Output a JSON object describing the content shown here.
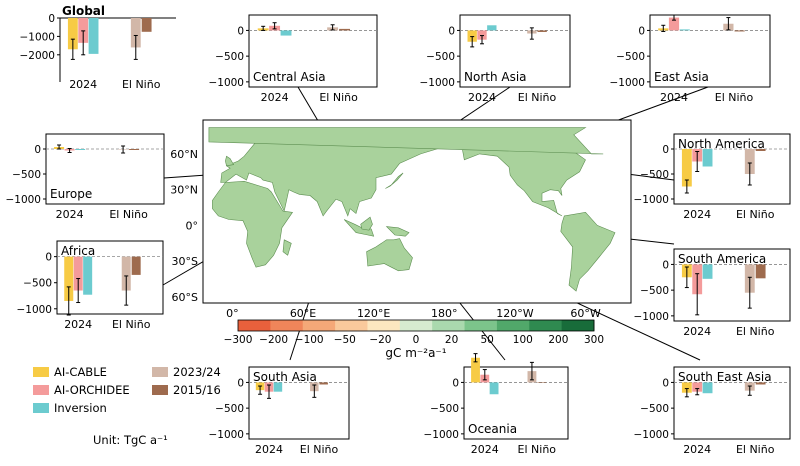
{
  "legend": {
    "items": [
      {
        "label": "AI-CABLE",
        "color": "#f7cb45"
      },
      {
        "label": "AI-ORCHIDEE",
        "color": "#f49b9b"
      },
      {
        "label": "Inversion",
        "color": "#6ccbcf"
      },
      {
        "label": "2023/24",
        "color": "#d2b7a8"
      },
      {
        "label": "2015/16",
        "color": "#9e6b4e"
      }
    ],
    "unit": "Unit: TgC a⁻¹"
  },
  "colorbar": {
    "ticks": [
      "-300",
      "-200",
      "-100",
      "-50",
      "-20",
      "0",
      "20",
      "50",
      "100",
      "200",
      "300"
    ],
    "colors": [
      "#e8603c",
      "#f0855a",
      "#f5a878",
      "#f9c99c",
      "#fce7c0",
      "#d6ecd0",
      "#aad9ae",
      "#7cc48b",
      "#51a86a",
      "#2f8a50",
      "#186c3a"
    ],
    "label": "gC m⁻²a⁻¹"
  },
  "map": {
    "lat_ticks": [
      "60°N",
      "30°N",
      "0°",
      "30°S",
      "60°S"
    ],
    "lon_ticks": [
      "0°",
      "60°E",
      "120°E",
      "180°",
      "120°W",
      "60°W"
    ]
  },
  "chart_data": [
    {
      "type": "bar",
      "title": "Global",
      "categories": [
        "2024",
        "El Niño"
      ],
      "ylim": [
        -2500,
        0
      ],
      "yticks": [
        0,
        -1000,
        -2000
      ],
      "series": [
        {
          "name": "AI-CABLE",
          "values": [
            -1700,
            null
          ],
          "err": [
            550,
            null
          ]
        },
        {
          "name": "AI-ORCHIDEE",
          "values": [
            -1350,
            null
          ],
          "err": [
            650,
            null
          ]
        },
        {
          "name": "Inversion",
          "values": [
            -1950,
            null
          ],
          "err": [
            null,
            null
          ]
        },
        {
          "name": "2023/24",
          "values": [
            null,
            -1600
          ],
          "err": [
            null,
            650
          ]
        },
        {
          "name": "2015/16",
          "values": [
            null,
            -750
          ],
          "err": [
            null,
            null
          ]
        }
      ]
    },
    {
      "type": "bar",
      "title": "Central Asia",
      "categories": [
        "2024",
        "El Niño"
      ],
      "ylim": [
        -1100,
        300
      ],
      "yticks": [
        0,
        -500,
        -1000
      ],
      "series": [
        {
          "name": "AI-CABLE",
          "values": [
            40,
            null
          ],
          "err": [
            40,
            null
          ]
        },
        {
          "name": "AI-ORCHIDEE",
          "values": [
            90,
            null
          ],
          "err": [
            60,
            null
          ]
        },
        {
          "name": "Inversion",
          "values": [
            -100,
            null
          ],
          "err": [
            null,
            null
          ]
        },
        {
          "name": "2023/24",
          "values": [
            null,
            60
          ],
          "err": [
            null,
            50
          ]
        },
        {
          "name": "2015/16",
          "values": [
            null,
            30
          ],
          "err": [
            null,
            null
          ]
        }
      ]
    },
    {
      "type": "bar",
      "title": "North Asia",
      "categories": [
        "2024",
        "El Niño"
      ],
      "ylim": [
        -1100,
        300
      ],
      "yticks": [
        0,
        -500,
        -1000
      ],
      "series": [
        {
          "name": "AI-CABLE",
          "values": [
            -220,
            null
          ],
          "err": [
            100,
            null
          ]
        },
        {
          "name": "AI-ORCHIDEE",
          "values": [
            -180,
            null
          ],
          "err": [
            80,
            null
          ]
        },
        {
          "name": "Inversion",
          "values": [
            100,
            null
          ],
          "err": [
            null,
            null
          ]
        },
        {
          "name": "2023/24",
          "values": [
            null,
            -60
          ],
          "err": [
            null,
            110
          ]
        },
        {
          "name": "2015/16",
          "values": [
            null,
            -30
          ],
          "err": [
            null,
            null
          ]
        }
      ]
    },
    {
      "type": "bar",
      "title": "East Asia",
      "categories": [
        "2024",
        "El Niño"
      ],
      "ylim": [
        -1100,
        300
      ],
      "yticks": [
        0,
        -500,
        -1000
      ],
      "series": [
        {
          "name": "AI-CABLE",
          "values": [
            40,
            null
          ],
          "err": [
            60,
            null
          ]
        },
        {
          "name": "AI-ORCHIDEE",
          "values": [
            250,
            null
          ],
          "err": [
            50,
            null
          ]
        },
        {
          "name": "Inversion",
          "values": [
            20,
            null
          ],
          "err": [
            null,
            null
          ]
        },
        {
          "name": "2023/24",
          "values": [
            null,
            130
          ],
          "err": [
            null,
            120
          ]
        },
        {
          "name": "2015/16",
          "values": [
            null,
            -20
          ],
          "err": [
            null,
            null
          ]
        }
      ]
    },
    {
      "type": "bar",
      "title": "Europe",
      "categories": [
        "2024",
        "El Niño"
      ],
      "ylim": [
        -1100,
        300
      ],
      "yticks": [
        0,
        -500,
        -1000
      ],
      "series": [
        {
          "name": "AI-CABLE",
          "values": [
            40,
            null
          ],
          "err": [
            40,
            null
          ]
        },
        {
          "name": "AI-ORCHIDEE",
          "values": [
            -30,
            null
          ],
          "err": [
            40,
            null
          ]
        },
        {
          "name": "Inversion",
          "values": [
            -20,
            null
          ],
          "err": [
            null,
            null
          ]
        },
        {
          "name": "2023/24",
          "values": [
            null,
            -10
          ],
          "err": [
            null,
            70
          ]
        },
        {
          "name": "2015/16",
          "values": [
            null,
            -20
          ],
          "err": [
            null,
            null
          ]
        }
      ]
    },
    {
      "type": "bar",
      "title": "North America",
      "categories": [
        "2024",
        "El Niño"
      ],
      "ylim": [
        -1100,
        300
      ],
      "yticks": [
        0,
        -500,
        -1000
      ],
      "series": [
        {
          "name": "AI-CABLE",
          "values": [
            -750,
            null
          ],
          "err": [
            130,
            null
          ]
        },
        {
          "name": "AI-ORCHIDEE",
          "values": [
            -250,
            null
          ],
          "err": [
            200,
            null
          ]
        },
        {
          "name": "Inversion",
          "values": [
            -350,
            null
          ],
          "err": [
            null,
            null
          ]
        },
        {
          "name": "2023/24",
          "values": [
            null,
            -500
          ],
          "err": [
            null,
            220
          ]
        },
        {
          "name": "2015/16",
          "values": [
            null,
            -40
          ],
          "err": [
            null,
            null
          ]
        }
      ]
    },
    {
      "type": "bar",
      "title": "Africa",
      "categories": [
        "2024",
        "El Niño"
      ],
      "ylim": [
        -1100,
        300
      ],
      "yticks": [
        0,
        -500,
        -1000
      ],
      "series": [
        {
          "name": "AI-CABLE",
          "values": [
            -850,
            null
          ],
          "err": [
            270,
            null
          ]
        },
        {
          "name": "AI-ORCHIDEE",
          "values": [
            -650,
            null
          ],
          "err": [
            230,
            null
          ]
        },
        {
          "name": "Inversion",
          "values": [
            -730,
            null
          ],
          "err": [
            null,
            null
          ]
        },
        {
          "name": "2023/24",
          "values": [
            null,
            -650
          ],
          "err": [
            null,
            280
          ]
        },
        {
          "name": "2015/16",
          "values": [
            null,
            -350
          ],
          "err": [
            null,
            null
          ]
        }
      ]
    },
    {
      "type": "bar",
      "title": "South America",
      "categories": [
        "2024",
        "El Niño"
      ],
      "ylim": [
        -1100,
        300
      ],
      "yticks": [
        0,
        -500,
        -1000
      ],
      "series": [
        {
          "name": "AI-CABLE",
          "values": [
            -250,
            null
          ],
          "err": [
            200,
            null
          ]
        },
        {
          "name": "AI-ORCHIDEE",
          "values": [
            -580,
            null
          ],
          "err": [
            400,
            null
          ]
        },
        {
          "name": "Inversion",
          "values": [
            -280,
            null
          ],
          "err": [
            null,
            null
          ]
        },
        {
          "name": "2023/24",
          "values": [
            null,
            -550
          ],
          "err": [
            null,
            300
          ]
        },
        {
          "name": "2015/16",
          "values": [
            null,
            -270
          ],
          "err": [
            null,
            null
          ]
        }
      ]
    },
    {
      "type": "bar",
      "title": "South Asia",
      "categories": [
        "2024",
        "El Niño"
      ],
      "ylim": [
        -1100,
        300
      ],
      "yticks": [
        0,
        -500,
        -1000
      ],
      "series": [
        {
          "name": "AI-CABLE",
          "values": [
            -150,
            null
          ],
          "err": [
            80,
            null
          ]
        },
        {
          "name": "AI-ORCHIDEE",
          "values": [
            -180,
            null
          ],
          "err": [
            130,
            null
          ]
        },
        {
          "name": "Inversion",
          "values": [
            -180,
            null
          ],
          "err": [
            null,
            null
          ]
        },
        {
          "name": "2023/24",
          "values": [
            null,
            -170
          ],
          "err": [
            null,
            120
          ]
        },
        {
          "name": "2015/16",
          "values": [
            null,
            -40
          ],
          "err": [
            null,
            null
          ]
        }
      ]
    },
    {
      "type": "bar",
      "title": "Oceania",
      "categories": [
        "2024",
        "El Niño"
      ],
      "ylim": [
        -1100,
        300
      ],
      "yticks": [
        0,
        -500,
        -1000
      ],
      "series": [
        {
          "name": "AI-CABLE",
          "values": [
            480,
            null
          ],
          "err": [
            80,
            null
          ]
        },
        {
          "name": "AI-ORCHIDEE",
          "values": [
            150,
            null
          ],
          "err": [
            100,
            null
          ]
        },
        {
          "name": "Inversion",
          "values": [
            -230,
            null
          ],
          "err": [
            null,
            null
          ]
        },
        {
          "name": "2023/24",
          "values": [
            null,
            220
          ],
          "err": [
            null,
            170
          ]
        },
        {
          "name": "2015/16",
          "values": [
            null,
            -10
          ],
          "err": [
            null,
            null
          ]
        }
      ]
    },
    {
      "type": "bar",
      "title": "South East Asia",
      "categories": [
        "2024",
        "El Niño"
      ],
      "ylim": [
        -1100,
        300
      ],
      "yticks": [
        0,
        -500,
        -1000
      ],
      "series": [
        {
          "name": "AI-CABLE",
          "values": [
            -200,
            null
          ],
          "err": [
            80,
            null
          ]
        },
        {
          "name": "AI-ORCHIDEE",
          "values": [
            -180,
            null
          ],
          "err": [
            60,
            null
          ]
        },
        {
          "name": "Inversion",
          "values": [
            -210,
            null
          ],
          "err": [
            null,
            null
          ]
        },
        {
          "name": "2023/24",
          "values": [
            null,
            -160
          ],
          "err": [
            null,
            90
          ]
        },
        {
          "name": "2015/16",
          "values": [
            null,
            -40
          ],
          "err": [
            null,
            null
          ]
        }
      ]
    }
  ]
}
